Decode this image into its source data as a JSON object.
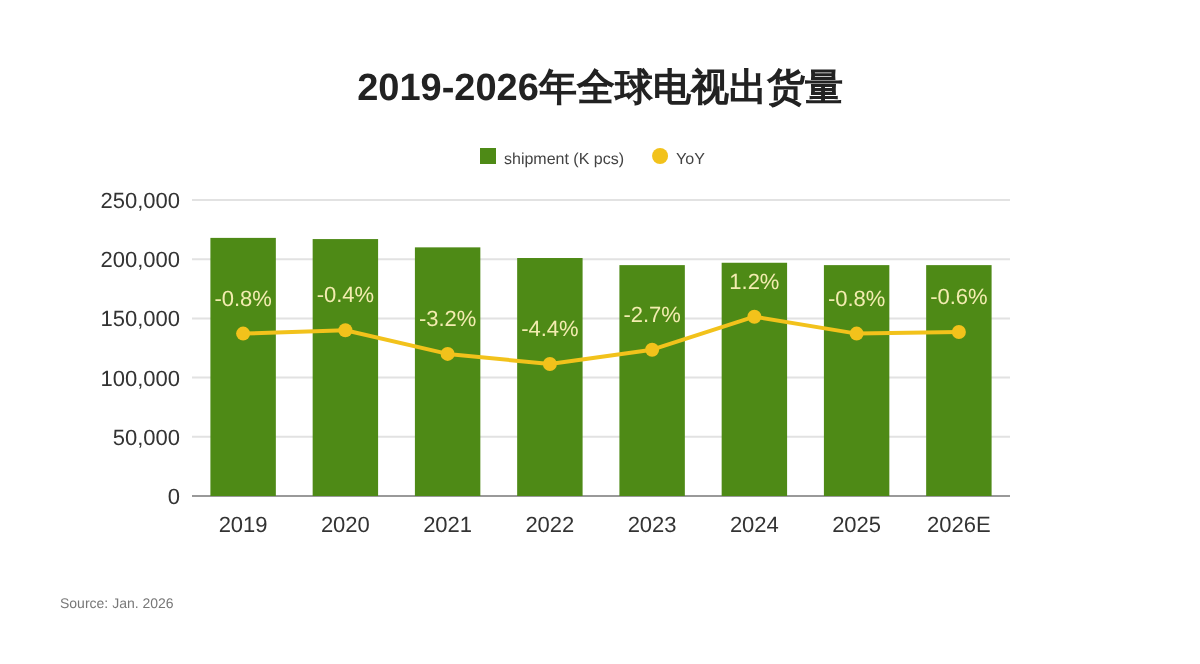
{
  "chart_data": {
    "type": "bar",
    "title": "2019-2026年全球电视出货量",
    "categories": [
      "2019",
      "2020",
      "2021",
      "2022",
      "2023",
      "2024",
      "2025",
      "2026E"
    ],
    "series": [
      {
        "name": "shipment (K pcs)",
        "color": "#4e8a16",
        "values": [
          218000,
          217000,
          210000,
          201000,
          195000,
          197000,
          195000,
          195000
        ]
      },
      {
        "name": "YoY",
        "type": "line",
        "axis": "y2",
        "color": "#f2c21b",
        "marker": "circle",
        "values": [
          -0.8,
          -0.4,
          -3.2,
          -4.4,
          -2.7,
          1.2,
          -0.8,
          -0.6
        ],
        "value_labels": [
          "-0.8%",
          "-0.4%",
          "-3.2%",
          "-4.4%",
          "-2.7%",
          "1.2%",
          "-0.8%",
          "-0.6%"
        ]
      }
    ],
    "ylim": [
      0,
      250000
    ],
    "yticks": [
      0,
      {
        "value": 50000,
        "label": "50,000"
      },
      {
        "value": 100000,
        "label": "100,000"
      },
      {
        "value": 150000,
        "label": "150,000"
      },
      {
        "value": 200000,
        "label": "200,000"
      },
      {
        "value": 250000,
        "label": "250,000"
      }
    ],
    "y2lim": [
      -20,
      15
    ],
    "grid": "y",
    "legend": "top",
    "annotations": [
      "Source: Jan. 2026"
    ]
  }
}
